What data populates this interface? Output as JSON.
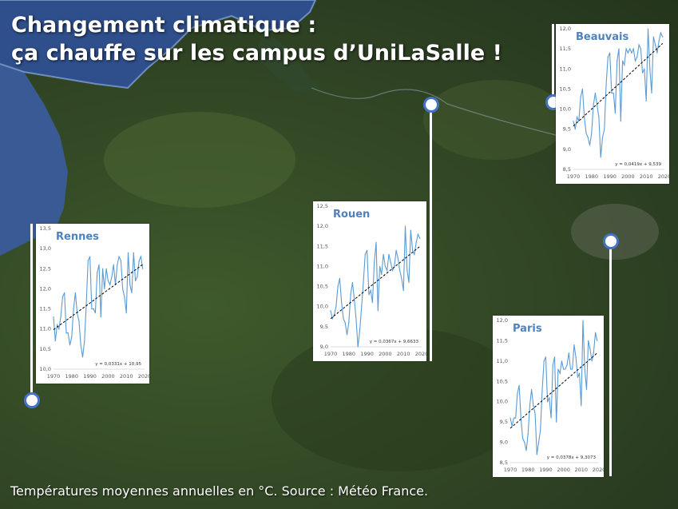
{
  "title_line1": "Changement climatique :",
  "title_line2": "ça chauffe sur les campus d’UniLaSalle !",
  "source": "Températures moyennes annuelles en °C. Source : Météo France.",
  "colors": {
    "line": "#5b9bd5",
    "trend": "#000000",
    "city": "#4f81bd",
    "pin_border": "#4472c4"
  },
  "chart_data": [
    {
      "type": "line",
      "title": "Rennes",
      "x_ticks": [
        "1970",
        "1980",
        "1990",
        "2000",
        "2010",
        "2020"
      ],
      "y_ticks": [
        "10,0",
        "10,5",
        "11,0",
        "11,5",
        "12,0",
        "12,5",
        "13,0",
        "13,5"
      ],
      "xlim": [
        1970,
        2020
      ],
      "ylim": [
        10.0,
        13.5
      ],
      "equation": "y = 0,0331x + 10,95",
      "trend": {
        "slope": 0.0331,
        "intercept": 10.95
      },
      "x": [
        1970,
        1971,
        1972,
        1973,
        1974,
        1975,
        1976,
        1977,
        1978,
        1979,
        1980,
        1981,
        1982,
        1983,
        1984,
        1985,
        1986,
        1987,
        1988,
        1989,
        1990,
        1991,
        1992,
        1993,
        1994,
        1995,
        1996,
        1997,
        1998,
        1999,
        2000,
        2001,
        2002,
        2003,
        2004,
        2005,
        2006,
        2007,
        2008,
        2009,
        2010,
        2011,
        2012,
        2013,
        2014,
        2015,
        2016,
        2017,
        2018,
        2019
      ],
      "values": [
        11.3,
        10.7,
        11.1,
        11.0,
        11.3,
        11.8,
        11.9,
        10.9,
        10.9,
        10.6,
        10.8,
        11.5,
        11.9,
        11.4,
        11.2,
        10.6,
        10.3,
        10.7,
        11.6,
        12.7,
        12.8,
        11.5,
        11.5,
        11.4,
        12.4,
        12.6,
        11.3,
        12.5,
        12.0,
        12.5,
        12.2,
        12.1,
        12.3,
        12.6,
        12.1,
        12.6,
        12.8,
        12.7,
        12.0,
        11.8,
        11.4,
        12.9,
        12.1,
        11.9,
        12.9,
        12.2,
        12.3,
        12.7,
        12.8,
        12.5
      ]
    },
    {
      "type": "line",
      "title": "Rouen",
      "x_ticks": [
        "1970",
        "1980",
        "1990",
        "2000",
        "2010",
        "2020"
      ],
      "y_ticks": [
        "9,0",
        "9,5",
        "10,0",
        "10,5",
        "11,0",
        "11,5",
        "12,0",
        "12,5"
      ],
      "xlim": [
        1970,
        2020
      ],
      "ylim": [
        9.0,
        12.5
      ],
      "equation": "y = 0,0367x + 9,6633",
      "trend": {
        "slope": 0.0367,
        "intercept": 9.6633
      },
      "x": [
        1970,
        1971,
        1972,
        1973,
        1974,
        1975,
        1976,
        1977,
        1978,
        1979,
        1980,
        1981,
        1982,
        1983,
        1984,
        1985,
        1986,
        1987,
        1988,
        1989,
        1990,
        1991,
        1992,
        1993,
        1994,
        1995,
        1996,
        1997,
        1998,
        1999,
        2000,
        2001,
        2002,
        2003,
        2004,
        2005,
        2006,
        2007,
        2008,
        2009,
        2010,
        2011,
        2012,
        2013,
        2014,
        2015,
        2016,
        2017,
        2018,
        2019
      ],
      "values": [
        9.9,
        9.7,
        9.8,
        10.0,
        10.5,
        10.7,
        10.1,
        9.7,
        9.6,
        9.3,
        9.6,
        10.3,
        10.6,
        10.2,
        9.7,
        9.0,
        9.4,
        10.0,
        10.6,
        11.3,
        11.4,
        10.3,
        10.4,
        10.1,
        11.1,
        11.6,
        9.9,
        11.0,
        10.8,
        11.3,
        11.0,
        10.9,
        11.3,
        11.1,
        10.9,
        11.0,
        11.4,
        11.2,
        10.9,
        10.7,
        10.4,
        12.0,
        10.9,
        10.6,
        11.9,
        11.4,
        11.3,
        11.6,
        11.8,
        11.7
      ]
    },
    {
      "type": "line",
      "title": "Beauvais",
      "x_ticks": [
        "1970",
        "1980",
        "1990",
        "2000",
        "2010",
        "2020"
      ],
      "y_ticks": [
        "8,5",
        "9,0",
        "9,5",
        "10,0",
        "10,5",
        "11,0",
        "11,5",
        "12,0"
      ],
      "xlim": [
        1970,
        2020
      ],
      "ylim": [
        8.5,
        12.0
      ],
      "equation": "y = 0,0419x + 9,539",
      "trend": {
        "slope": 0.0419,
        "intercept": 9.539
      },
      "x": [
        1970,
        1971,
        1972,
        1973,
        1974,
        1975,
        1976,
        1977,
        1978,
        1979,
        1980,
        1981,
        1982,
        1983,
        1984,
        1985,
        1986,
        1987,
        1988,
        1989,
        1990,
        1991,
        1992,
        1993,
        1994,
        1995,
        1996,
        1997,
        1998,
        1999,
        2000,
        2001,
        2002,
        2003,
        2004,
        2005,
        2006,
        2007,
        2008,
        2009,
        2010,
        2011,
        2012,
        2013,
        2014,
        2015,
        2016,
        2017,
        2018,
        2019
      ],
      "values": [
        9.7,
        9.5,
        9.8,
        9.7,
        10.3,
        10.5,
        9.8,
        9.4,
        9.3,
        9.1,
        9.4,
        10.1,
        10.4,
        10.1,
        9.8,
        8.8,
        9.3,
        9.5,
        10.6,
        11.3,
        11.4,
        10.4,
        10.4,
        9.9,
        11.2,
        11.5,
        9.7,
        11.2,
        11.1,
        11.5,
        11.4,
        11.5,
        11.4,
        11.5,
        11.2,
        11.3,
        11.6,
        11.5,
        10.9,
        11.0,
        10.2,
        12.0,
        11.0,
        10.4,
        11.8,
        11.6,
        11.4,
        11.7,
        11.9,
        11.8
      ]
    },
    {
      "type": "line",
      "title": "Paris",
      "x_ticks": [
        "1970",
        "1980",
        "1990",
        "2000",
        "2010",
        "2020"
      ],
      "y_ticks": [
        "8,5",
        "9,0",
        "9,5",
        "10,0",
        "10,5",
        "11,0",
        "11,5",
        "12,0"
      ],
      "xlim": [
        1970,
        2020
      ],
      "ylim": [
        8.5,
        12.0
      ],
      "equation": "y = 0,0378x + 9,3073",
      "trend": {
        "slope": 0.0378,
        "intercept": 9.3073
      },
      "x": [
        1970,
        1971,
        1972,
        1973,
        1974,
        1975,
        1976,
        1977,
        1978,
        1979,
        1980,
        1981,
        1982,
        1983,
        1984,
        1985,
        1986,
        1987,
        1988,
        1989,
        1990,
        1991,
        1992,
        1993,
        1994,
        1995,
        1996,
        1997,
        1998,
        1999,
        2000,
        2001,
        2002,
        2003,
        2004,
        2005,
        2006,
        2007,
        2008,
        2009,
        2010,
        2011,
        2012,
        2013,
        2014,
        2015,
        2016,
        2017,
        2018,
        2019
      ],
      "values": [
        9.6,
        9.4,
        9.6,
        9.6,
        10.2,
        10.4,
        9.6,
        9.1,
        9.0,
        8.8,
        9.2,
        9.9,
        10.3,
        9.9,
        9.7,
        8.7,
        9.0,
        9.3,
        10.3,
        11.0,
        11.1,
        10.0,
        10.1,
        9.6,
        10.9,
        11.1,
        9.5,
        10.8,
        10.7,
        11.0,
        10.8,
        10.8,
        10.9,
        11.2,
        10.8,
        10.8,
        11.4,
        11.1,
        10.6,
        10.7,
        9.9,
        12.0,
        10.8,
        10.3,
        11.5,
        11.3,
        11.0,
        11.2,
        11.7,
        11.5
      ]
    }
  ]
}
